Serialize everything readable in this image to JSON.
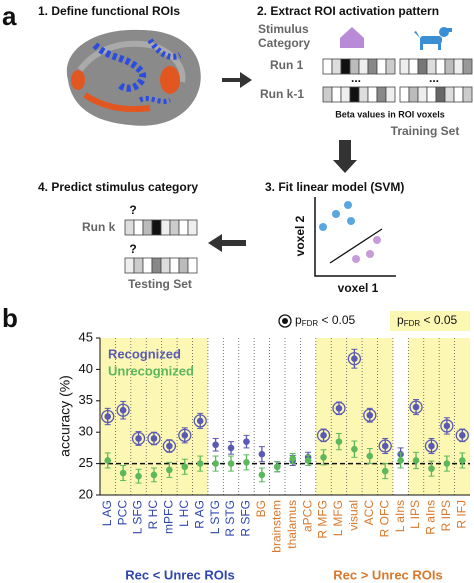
{
  "panel_a": {
    "label": "a",
    "step1": "1. Define functional ROIs",
    "step2": "2. Extract ROI activation pattern",
    "stimulus_category": [
      "Stimulus",
      "Category"
    ],
    "run1": "Run 1",
    "runk1": "Run k-1",
    "ellipsis": "...",
    "beta_caption": "Beta values in ROI voxels",
    "training_set": "Training Set",
    "step3": "3. Fit linear model (SVM)",
    "voxel2": "voxel 2",
    "voxel1": "voxel 1",
    "step4": "4. Predict stimulus category",
    "runk": "Run k",
    "question": "?",
    "testing_set": "Testing Set"
  },
  "panel_b": {
    "label": "b",
    "sig_legend": {
      "p": "p",
      "sub": "FDR",
      "rest": " < 0.05"
    }
  },
  "chart_data": {
    "type": "errorbar",
    "ylabel": "accuracy (%)",
    "categories": [
      "L AG",
      "PCC",
      "L SFG",
      "R HC",
      "mPFC",
      "L HC",
      "R AG",
      "L STG",
      "R STG",
      "R SFG",
      "BG",
      "brainstem",
      "thalamus",
      "aPCC",
      "R MFG",
      "L MFG",
      "visual",
      "ACC",
      "R OFC",
      "L aIns",
      "L IPS",
      "R aIns",
      "R IPS",
      "R IFJ"
    ],
    "label_colors": [
      "#2f46b0",
      "#2f46b0",
      "#2f46b0",
      "#2f46b0",
      "#2f46b0",
      "#2f46b0",
      "#2f46b0",
      "#2f46b0",
      "#2f46b0",
      "#2f46b0",
      "#d9782d",
      "#d9782d",
      "#d9782d",
      "#d9782d",
      "#d9782d",
      "#d9782d",
      "#d9782d",
      "#d9782d",
      "#d9782d",
      "#d9782d",
      "#d9782d",
      "#d9782d",
      "#d9782d",
      "#d9782d"
    ],
    "significant": [
      true,
      true,
      true,
      true,
      true,
      true,
      true,
      false,
      false,
      false,
      false,
      false,
      false,
      false,
      true,
      true,
      true,
      true,
      true,
      false,
      true,
      true,
      true,
      true
    ],
    "series": [
      {
        "name": "Recognized",
        "color": "#5a5ab4",
        "values": [
          32.5,
          33.5,
          29,
          29,
          27.8,
          29.5,
          31.8,
          28,
          27.5,
          28.5,
          26.5,
          24.5,
          25.5,
          26,
          29.5,
          33.8,
          41.7,
          32.7,
          27.8,
          26.5,
          34,
          27.8,
          31,
          29.5
        ],
        "errors": [
          1.3,
          1.4,
          1.1,
          1.0,
          1.0,
          1.2,
          1.2,
          1.0,
          1.0,
          1.0,
          1.2,
          0.8,
          0.8,
          0.8,
          1.0,
          1.0,
          1.5,
          1.1,
          1.2,
          1.0,
          1.2,
          1.2,
          1.3,
          1.0
        ]
      },
      {
        "name": "Unrecognized",
        "color": "#5cb85c",
        "values": [
          25.5,
          23.5,
          23,
          23.2,
          24,
          24.5,
          25,
          25,
          25,
          25.2,
          23.2,
          24.5,
          25.8,
          25.5,
          26,
          28.5,
          27.3,
          26.2,
          23.8,
          25.5,
          25.5,
          24.2,
          25,
          25.5
        ],
        "errors": [
          1.2,
          1.2,
          1.1,
          1.1,
          1.2,
          1.2,
          1.2,
          1.2,
          1.2,
          1.2,
          1.1,
          0.8,
          0.8,
          0.8,
          1.2,
          1.3,
          1.3,
          1.2,
          1.2,
          1.2,
          1.3,
          1.2,
          1.2,
          1.2
        ]
      }
    ],
    "reference_line": 25,
    "ylim": [
      20,
      45
    ],
    "yticks": [
      20,
      25,
      30,
      35,
      40,
      45
    ],
    "groups": [
      "Rec < Unrec ROIs",
      "Rec > Unrec ROIs"
    ],
    "group_colors": [
      "#2f46b0",
      "#d9782d"
    ],
    "highlight_color": "#fcf8b4"
  }
}
